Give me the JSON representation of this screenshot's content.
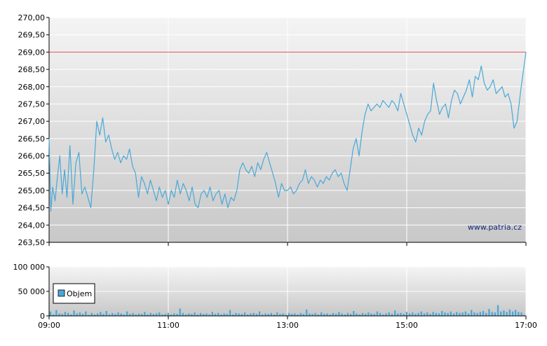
{
  "watermark": "www.patria.cz",
  "legend": {
    "label": "Objem",
    "color": "#4aa8d8"
  },
  "colors": {
    "price_line": "#4aa8d8",
    "reference_line": "#e05050",
    "volume_bar": "#4aa8d8",
    "plot_top": "#f4f4f4",
    "plot_bottom": "#c8c8c8",
    "grid": "#ffffff"
  },
  "chart_data": [
    {
      "type": "line",
      "name": "price",
      "ylim": [
        263.5,
        270.0
      ],
      "yticks": [
        "263,50",
        "264,00",
        "264,50",
        "265,00",
        "265,50",
        "266,00",
        "266,50",
        "267,00",
        "267,50",
        "268,00",
        "268,50",
        "269,00",
        "269,50",
        "270,00"
      ],
      "xticks": [
        "09:00",
        "11:00",
        "13:00",
        "15:00",
        "17:00"
      ],
      "xlim_hours": [
        9,
        17
      ],
      "reference_value": 269.0,
      "points": [
        [
          9.0,
          266.5
        ],
        [
          9.03,
          264.4
        ],
        [
          9.06,
          265.1
        ],
        [
          9.1,
          264.7
        ],
        [
          9.14,
          265.4
        ],
        [
          9.18,
          266.0
        ],
        [
          9.22,
          264.9
        ],
        [
          9.26,
          265.6
        ],
        [
          9.3,
          264.8
        ],
        [
          9.35,
          266.3
        ],
        [
          9.4,
          264.6
        ],
        [
          9.45,
          265.8
        ],
        [
          9.5,
          266.1
        ],
        [
          9.55,
          264.9
        ],
        [
          9.6,
          265.1
        ],
        [
          9.65,
          264.8
        ],
        [
          9.7,
          264.5
        ],
        [
          9.75,
          265.6
        ],
        [
          9.8,
          267.0
        ],
        [
          9.85,
          266.6
        ],
        [
          9.9,
          267.1
        ],
        [
          9.95,
          266.4
        ],
        [
          10.0,
          266.6
        ],
        [
          10.05,
          266.2
        ],
        [
          10.1,
          265.9
        ],
        [
          10.15,
          266.1
        ],
        [
          10.2,
          265.8
        ],
        [
          10.25,
          266.0
        ],
        [
          10.3,
          265.9
        ],
        [
          10.35,
          266.2
        ],
        [
          10.4,
          265.7
        ],
        [
          10.45,
          265.5
        ],
        [
          10.5,
          264.8
        ],
        [
          10.55,
          265.4
        ],
        [
          10.6,
          265.2
        ],
        [
          10.65,
          264.9
        ],
        [
          10.7,
          265.3
        ],
        [
          10.75,
          265.0
        ],
        [
          10.8,
          264.7
        ],
        [
          10.85,
          265.1
        ],
        [
          10.9,
          264.8
        ],
        [
          10.95,
          265.0
        ],
        [
          11.0,
          264.6
        ],
        [
          11.05,
          265.0
        ],
        [
          11.1,
          264.8
        ],
        [
          11.15,
          265.3
        ],
        [
          11.2,
          264.9
        ],
        [
          11.25,
          265.2
        ],
        [
          11.3,
          265.0
        ],
        [
          11.35,
          264.7
        ],
        [
          11.4,
          265.1
        ],
        [
          11.45,
          264.6
        ],
        [
          11.5,
          264.5
        ],
        [
          11.55,
          264.9
        ],
        [
          11.6,
          265.0
        ],
        [
          11.65,
          264.8
        ],
        [
          11.7,
          265.1
        ],
        [
          11.75,
          264.7
        ],
        [
          11.8,
          264.9
        ],
        [
          11.85,
          265.0
        ],
        [
          11.9,
          264.6
        ],
        [
          11.95,
          264.9
        ],
        [
          12.0,
          264.5
        ],
        [
          12.05,
          264.8
        ],
        [
          12.1,
          264.7
        ],
        [
          12.15,
          265.0
        ],
        [
          12.2,
          265.6
        ],
        [
          12.25,
          265.8
        ],
        [
          12.3,
          265.6
        ],
        [
          12.35,
          265.5
        ],
        [
          12.4,
          265.7
        ],
        [
          12.45,
          265.4
        ],
        [
          12.5,
          265.8
        ],
        [
          12.55,
          265.6
        ],
        [
          12.6,
          265.9
        ],
        [
          12.65,
          266.1
        ],
        [
          12.7,
          265.8
        ],
        [
          12.75,
          265.5
        ],
        [
          12.8,
          265.2
        ],
        [
          12.85,
          264.8
        ],
        [
          12.9,
          265.2
        ],
        [
          12.95,
          265.0
        ],
        [
          13.0,
          265.0
        ],
        [
          13.05,
          265.1
        ],
        [
          13.1,
          264.9
        ],
        [
          13.15,
          265.0
        ],
        [
          13.2,
          265.2
        ],
        [
          13.25,
          265.3
        ],
        [
          13.3,
          265.6
        ],
        [
          13.35,
          265.2
        ],
        [
          13.4,
          265.4
        ],
        [
          13.45,
          265.3
        ],
        [
          13.5,
          265.1
        ],
        [
          13.55,
          265.3
        ],
        [
          13.6,
          265.2
        ],
        [
          13.65,
          265.4
        ],
        [
          13.7,
          265.3
        ],
        [
          13.75,
          265.5
        ],
        [
          13.8,
          265.6
        ],
        [
          13.85,
          265.4
        ],
        [
          13.9,
          265.5
        ],
        [
          13.95,
          265.2
        ],
        [
          14.0,
          265.0
        ],
        [
          14.05,
          265.6
        ],
        [
          14.1,
          266.2
        ],
        [
          14.15,
          266.5
        ],
        [
          14.2,
          266.0
        ],
        [
          14.25,
          266.7
        ],
        [
          14.3,
          267.2
        ],
        [
          14.35,
          267.5
        ],
        [
          14.4,
          267.3
        ],
        [
          14.45,
          267.4
        ],
        [
          14.5,
          267.5
        ],
        [
          14.55,
          267.4
        ],
        [
          14.6,
          267.6
        ],
        [
          14.65,
          267.5
        ],
        [
          14.7,
          267.4
        ],
        [
          14.75,
          267.6
        ],
        [
          14.8,
          267.5
        ],
        [
          14.85,
          267.3
        ],
        [
          14.9,
          267.8
        ],
        [
          14.95,
          267.5
        ],
        [
          15.0,
          267.2
        ],
        [
          15.05,
          266.9
        ],
        [
          15.1,
          266.6
        ],
        [
          15.15,
          266.4
        ],
        [
          15.2,
          266.8
        ],
        [
          15.25,
          266.6
        ],
        [
          15.3,
          267.0
        ],
        [
          15.35,
          267.2
        ],
        [
          15.4,
          267.3
        ],
        [
          15.45,
          268.1
        ],
        [
          15.5,
          267.6
        ],
        [
          15.55,
          267.2
        ],
        [
          15.6,
          267.4
        ],
        [
          15.65,
          267.5
        ],
        [
          15.7,
          267.1
        ],
        [
          15.75,
          267.6
        ],
        [
          15.8,
          267.9
        ],
        [
          15.85,
          267.8
        ],
        [
          15.9,
          267.5
        ],
        [
          15.95,
          267.7
        ],
        [
          16.0,
          267.9
        ],
        [
          16.05,
          268.2
        ],
        [
          16.1,
          267.7
        ],
        [
          16.15,
          268.3
        ],
        [
          16.2,
          268.2
        ],
        [
          16.25,
          268.6
        ],
        [
          16.3,
          268.1
        ],
        [
          16.35,
          267.9
        ],
        [
          16.4,
          268.0
        ],
        [
          16.45,
          268.2
        ],
        [
          16.5,
          267.8
        ],
        [
          16.55,
          267.9
        ],
        [
          16.6,
          268.0
        ],
        [
          16.65,
          267.7
        ],
        [
          16.7,
          267.8
        ],
        [
          16.75,
          267.5
        ],
        [
          16.8,
          266.8
        ],
        [
          16.85,
          267.0
        ],
        [
          16.92,
          268.0
        ],
        [
          17.0,
          269.0
        ]
      ]
    },
    {
      "type": "bar",
      "name": "Objem",
      "ylim": [
        0,
        100000
      ],
      "yticks": [
        "0",
        "50 000",
        "100 000"
      ],
      "xticks": [
        "09:00",
        "11:00",
        "13:00",
        "15:00",
        "17:00"
      ],
      "xlim_hours": [
        9,
        17
      ],
      "values": [
        9000,
        3000,
        12000,
        5000,
        4000,
        8000,
        6000,
        3000,
        11000,
        5000,
        7000,
        4000,
        9000,
        2000,
        6000,
        3000,
        5000,
        8000,
        4000,
        10000,
        3000,
        6000,
        4000,
        7000,
        5000,
        3000,
        9000,
        4000,
        6000,
        3000,
        5000,
        4000,
        8000,
        3000,
        6000,
        4000,
        5000,
        7000,
        3000,
        4000,
        6000,
        3000,
        5000,
        4000,
        15000,
        6000,
        3000,
        5000,
        4000,
        7000,
        3000,
        6000,
        4000,
        5000,
        3000,
        8000,
        4000,
        6000,
        3000,
        5000,
        4000,
        12000,
        3000,
        6000,
        5000,
        4000,
        7000,
        3000,
        5000,
        6000,
        4000,
        9000,
        3000,
        5000,
        4000,
        6000,
        3000,
        7000,
        4000,
        5000,
        3000,
        6000,
        4000,
        5000,
        3000,
        6000,
        4000,
        13000,
        5000,
        4000,
        6000,
        3000,
        7000,
        4000,
        5000,
        3000,
        6000,
        4000,
        8000,
        5000,
        3000,
        6000,
        4000,
        10000,
        5000,
        3000,
        6000,
        4000,
        7000,
        5000,
        4000,
        9000,
        6000,
        3000,
        5000,
        7000,
        4000,
        11000,
        5000,
        6000,
        4000,
        8000,
        5000,
        7000,
        4000,
        6000,
        9000,
        5000,
        7000,
        4000,
        8000,
        6000,
        5000,
        10000,
        7000,
        6000,
        9000,
        5000,
        8000,
        6000,
        7000,
        9000,
        5000,
        12000,
        7000,
        6000,
        8000,
        10000,
        6000,
        14000,
        8000,
        7000,
        22000,
        9000,
        11000,
        8000,
        13000,
        9000,
        12000,
        8000,
        7000,
        2000
      ]
    }
  ]
}
